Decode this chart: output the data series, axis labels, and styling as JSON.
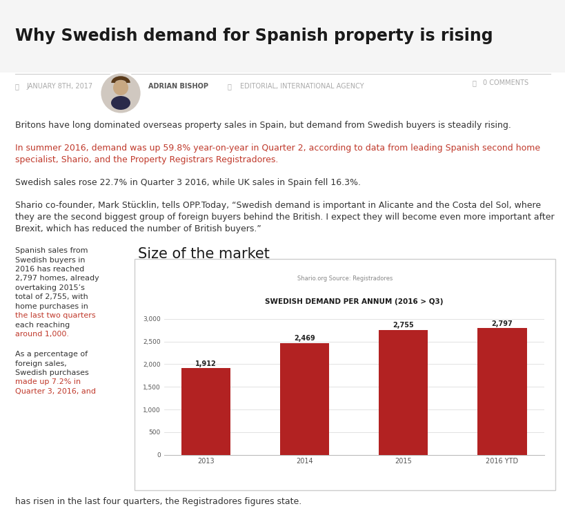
{
  "page_bg": "#ffffff",
  "content_bg": "#ffffff",
  "title": "Why Swedish demand for Spanish property is rising",
  "title_color": "#1a1a1a",
  "title_fontsize": 17,
  "date_text": "JANUARY 8TH, 2017",
  "author_text": "ADRIAN BISHOP",
  "tags_text": "EDITORIAL, INTERNATIONAL AGENCY",
  "comments_text": "0 COMMENTS",
  "meta_color": "#aaaaaa",
  "para1": "Britons have long dominated overseas property sales in Spain, but demand from Swedish buyers is steadily rising.",
  "para2_line1": "In summer 2016, demand was up 59.8% year-on-year in Quarter 2, according to data from leading Spanish second home",
  "para2_line2": "specialist, Shario, and the Property Registrars Registradores.",
  "para3": "Swedish sales rose 22.7% in Quarter 3 2016, while UK sales in Spain fell 16.3%.",
  "para4_line1": "Shario co-founder, Mark Stücklin, tells OPP.Today, “Swedish demand is important in Alicante and the Costa del Sol, where",
  "para4_line2": "they are the second biggest group of foreign buyers behind the British. I expect they will become even more important after",
  "para4_line3": "Brexit, which has reduced the number of British buyers.”",
  "para_color": "#333333",
  "para_color_orange": "#c0392b",
  "para_fontsize": 9,
  "side_text_lines": [
    {
      "text": "Spanish sales from",
      "orange": false
    },
    {
      "text": "Swedish buyers in",
      "orange": false
    },
    {
      "text": "2016 has reached",
      "orange": false
    },
    {
      "text": "2,797 homes, already",
      "orange": false
    },
    {
      "text": "overtaking 2015’s",
      "orange": false
    },
    {
      "text": "total of 2,755, with",
      "orange": false
    },
    {
      "text": "home purchases in",
      "orange": false
    },
    {
      "text": "the last two quarters",
      "orange": true
    },
    {
      "text": "each reaching",
      "orange": false
    },
    {
      "text": "around 1,000.",
      "orange": true
    }
  ],
  "side_text2_lines": [
    {
      "text": "As a percentage of",
      "orange": false
    },
    {
      "text": "foreign sales,",
      "orange": false
    },
    {
      "text": "Swedish purchases",
      "orange": false
    },
    {
      "text": "made up 7.2% in",
      "orange": true
    },
    {
      "text": "Quarter 3, 2016, and",
      "orange": true
    }
  ],
  "bottom_text": "has risen in the last four quarters, the Registradores figures state.",
  "chart_title": "SWEDISH DEMAND PER ANNUM (2016 > Q3)",
  "chart_subtitle": "Shario.org Source: Registradores",
  "chart_title_color": "#1a1a1a",
  "chart_subtitle_color": "#888888",
  "bar_color": "#b22222",
  "bar_categories": [
    "2013",
    "2014",
    "2015",
    "2016 YTD"
  ],
  "bar_values": [
    1912,
    2469,
    2755,
    2797
  ],
  "bar_labels": [
    "1,912",
    "2,469",
    "2,755",
    "2,797"
  ],
  "ylim": [
    0,
    3000
  ],
  "yticks": [
    0,
    500,
    1000,
    1500,
    2000,
    2500,
    3000
  ],
  "chart_bg": "#ffffff",
  "grid_color": "#dddddd",
  "axis_label_color": "#555555",
  "value_label_color": "#222222",
  "size_of_market_text": "Size of the market",
  "size_of_market_color": "#1a1a1a",
  "size_of_market_fontsize": 15
}
